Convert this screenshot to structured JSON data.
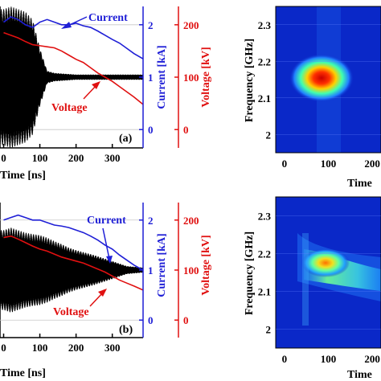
{
  "colors": {
    "current": "#1f1fd6",
    "voltage": "#e01010",
    "signal": "#000000",
    "axis": "#000000",
    "grid": "#c8c8c8"
  },
  "chart_data": [
    {
      "type": "line",
      "panel_label": "(a)",
      "xlabel": "Time [ns]",
      "xlim": [
        -10,
        385
      ],
      "x_ticks": [
        "0",
        "100",
        "200",
        "300"
      ],
      "y_current_label": "Current [kA]",
      "y_current_ticks": [
        "0",
        "1",
        "2"
      ],
      "y_current_lim": [
        -0.35,
        2.35
      ],
      "y_voltage_label": "Voltage [kV]",
      "y_voltage_ticks": [
        "0",
        "100",
        "200"
      ],
      "y_voltage_lim": [
        -35,
        235
      ],
      "annotation_current": "Current",
      "annotation_voltage": "Voltage",
      "series": [
        {
          "name": "Current",
          "axis": "current",
          "x": [
            0,
            20,
            40,
            60,
            80,
            100,
            120,
            140,
            160,
            180,
            200,
            220,
            240,
            260,
            280,
            300,
            320,
            340,
            360,
            385
          ],
          "values": [
            2.05,
            2.15,
            2.1,
            2.0,
            1.95,
            2.05,
            2.1,
            2.05,
            2.0,
            2.0,
            2.03,
            1.98,
            1.95,
            1.88,
            1.8,
            1.72,
            1.65,
            1.55,
            1.45,
            1.35
          ]
        },
        {
          "name": "Voltage",
          "axis": "voltage",
          "x": [
            0,
            20,
            40,
            60,
            80,
            100,
            120,
            140,
            160,
            180,
            200,
            220,
            240,
            260,
            280,
            300,
            320,
            340,
            360,
            385
          ],
          "values": [
            185,
            180,
            175,
            168,
            162,
            160,
            158,
            156,
            150,
            142,
            134,
            128,
            118,
            108,
            100,
            92,
            82,
            72,
            62,
            48
          ]
        },
        {
          "name": "Signal",
          "axis": "current",
          "envelope_x": [
            0,
            20,
            40,
            60,
            80,
            100,
            120,
            140,
            160,
            180,
            200,
            250,
            300,
            385
          ],
          "envelope_amp": [
            1.3,
            1.35,
            1.3,
            1.25,
            1.1,
            0.55,
            0.12,
            0.08,
            0.07,
            0.06,
            0.05,
            0.05,
            0.05,
            0.05
          ],
          "offset": 1.0
        }
      ]
    },
    {
      "type": "heatmap",
      "xlabel": "Time",
      "ylabel": "Frequency [GHz]",
      "x_ticks": [
        "0",
        "100",
        "200"
      ],
      "y_ticks": [
        "2",
        "2.1",
        "2.2",
        "2.3"
      ],
      "xlim": [
        -20,
        220
      ],
      "ylim": [
        1.95,
        2.35
      ],
      "hot_spot": {
        "t": [
          60,
          140
        ],
        "f": 2.15
      }
    },
    {
      "type": "line",
      "panel_label": "(b)",
      "xlabel": "Time [ns]",
      "xlim": [
        -10,
        385
      ],
      "x_ticks": [
        "0",
        "100",
        "200",
        "300"
      ],
      "y_current_label": "Current [kA]",
      "y_current_ticks": [
        "0",
        "1",
        "2"
      ],
      "y_current_lim": [
        -0.35,
        2.35
      ],
      "y_voltage_label": "Voltage [kV]",
      "y_voltage_ticks": [
        "0",
        "100",
        "200"
      ],
      "y_voltage_lim": [
        -35,
        235
      ],
      "annotation_current": "Current",
      "annotation_voltage": "Voltage",
      "series": [
        {
          "name": "Current",
          "axis": "current",
          "x": [
            0,
            20,
            40,
            60,
            80,
            100,
            120,
            140,
            160,
            180,
            200,
            220,
            240,
            260,
            280,
            300,
            320,
            340,
            360,
            385
          ],
          "values": [
            2.0,
            2.05,
            2.1,
            2.05,
            2.0,
            2.0,
            1.95,
            1.9,
            1.88,
            1.85,
            1.8,
            1.75,
            1.68,
            1.6,
            1.5,
            1.42,
            1.3,
            1.2,
            1.1,
            1.0
          ]
        },
        {
          "name": "Voltage",
          "axis": "voltage",
          "x": [
            0,
            20,
            40,
            60,
            80,
            100,
            120,
            140,
            160,
            180,
            200,
            220,
            240,
            260,
            280,
            300,
            320,
            340,
            360,
            385
          ],
          "values": [
            165,
            168,
            162,
            155,
            148,
            142,
            138,
            132,
            126,
            122,
            118,
            114,
            108,
            102,
            96,
            88,
            80,
            74,
            68,
            60
          ]
        },
        {
          "name": "Signal",
          "axis": "current",
          "envelope_x": [
            0,
            20,
            40,
            60,
            80,
            100,
            120,
            140,
            160,
            180,
            200,
            250,
            300,
            340,
            385
          ],
          "envelope_amp": [
            0.8,
            0.85,
            0.8,
            0.75,
            0.72,
            0.7,
            0.65,
            0.58,
            0.52,
            0.45,
            0.4,
            0.3,
            0.18,
            0.08,
            0.05
          ],
          "offset": 1.0
        }
      ]
    },
    {
      "type": "heatmap",
      "xlabel": "Time",
      "ylabel": "Frequency [GHz]",
      "x_ticks": [
        "0",
        "100",
        "200"
      ],
      "y_ticks": [
        "2",
        "2.1",
        "2.2",
        "2.3"
      ],
      "xlim": [
        -20,
        220
      ],
      "ylim": [
        1.95,
        2.35
      ],
      "hot_spot": {
        "t": [
          70,
          220
        ],
        "f": 2.17
      }
    }
  ]
}
